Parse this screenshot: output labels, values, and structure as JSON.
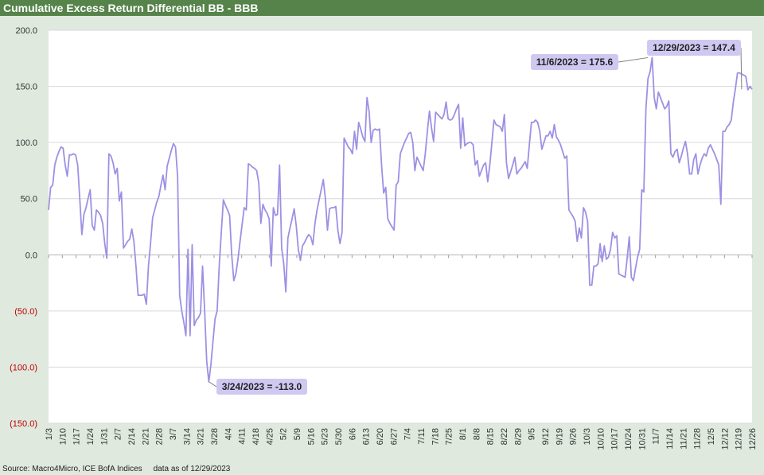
{
  "header": {
    "title": "Cumulative Excess Return Differential BB - BBB"
  },
  "footer": {
    "source": "Source: Macro4Micro, ICE BofA Indices",
    "as_of": "data as of 12/29/2023"
  },
  "colors": {
    "title_bar": "#55834a",
    "background": "#dfe9de",
    "series": "#9c91e4",
    "negative_label": "#c00000",
    "callout_fill": "#cfc9f2"
  },
  "chart_data": {
    "type": "line",
    "title": "Cumulative Excess Return Differential BB - BBB",
    "xlabel": "",
    "ylabel": "",
    "ylim": [
      -150,
      200
    ],
    "y_ticks": [
      {
        "value": 200,
        "label": "200.0"
      },
      {
        "value": 150,
        "label": "150.0"
      },
      {
        "value": 100,
        "label": "100.0"
      },
      {
        "value": 50,
        "label": "50.0"
      },
      {
        "value": 0,
        "label": "0.0"
      },
      {
        "value": -50,
        "label": "(50.0)"
      },
      {
        "value": -100,
        "label": "(100.0)"
      },
      {
        "value": -150,
        "label": "(150.0)"
      }
    ],
    "x_ticks": [
      "1/3",
      "1/10",
      "1/17",
      "1/24",
      "1/31",
      "2/7",
      "2/14",
      "2/21",
      "2/28",
      "3/7",
      "3/14",
      "3/21",
      "3/28",
      "4/4",
      "4/11",
      "4/18",
      "4/25",
      "5/2",
      "5/9",
      "5/16",
      "5/23",
      "5/30",
      "6/6",
      "6/13",
      "6/20",
      "6/27",
      "7/4",
      "7/11",
      "7/18",
      "7/25",
      "8/1",
      "8/8",
      "8/15",
      "8/22",
      "8/29",
      "9/5",
      "9/12",
      "9/19",
      "9/26",
      "10/3",
      "10/10",
      "10/17",
      "10/24",
      "10/31",
      "11/7",
      "11/14",
      "11/21",
      "11/28",
      "12/5",
      "12/12",
      "12/19",
      "12/26"
    ],
    "grid": true,
    "series": [
      {
        "values": [
          40,
          60,
          62,
          80,
          87,
          92,
          96,
          95,
          80,
          70,
          89,
          89,
          90,
          89,
          80,
          50,
          18,
          36,
          42,
          50,
          58,
          26,
          22,
          40,
          38,
          35,
          28,
          10,
          -3,
          90,
          88,
          82,
          72,
          77,
          48,
          56,
          6,
          9,
          12,
          14,
          23,
          12,
          -10,
          -36,
          -36,
          -36,
          -35,
          -44,
          -10,
          10,
          33,
          40,
          47,
          52,
          62,
          71,
          58,
          79,
          86,
          93,
          99,
          96,
          70,
          -36,
          -50,
          -60,
          -72,
          5,
          -72,
          9,
          -63,
          -58,
          -56,
          -52,
          -10,
          -50,
          -95,
          -113,
          -98,
          -77,
          -57,
          -50,
          -10,
          20,
          49,
          44,
          40,
          35,
          0,
          -23,
          -17,
          -4,
          12,
          27,
          42,
          40,
          81,
          80,
          78,
          77,
          75,
          64,
          28,
          45,
          40,
          37,
          32,
          -10,
          42,
          35,
          36,
          80,
          6,
          -8,
          -33,
          15,
          24,
          32,
          41,
          26,
          5,
          -5,
          8,
          11,
          15,
          18,
          16,
          9,
          28,
          40,
          49,
          58,
          67,
          50,
          22,
          41,
          42,
          42,
          43,
          22,
          10,
          20,
          104,
          100,
          96,
          94,
          90,
          110,
          94,
          118,
          112,
          105,
          101,
          140,
          128,
          100,
          111,
          112,
          111,
          112,
          80,
          55,
          60,
          32,
          28,
          25,
          22,
          62,
          65,
          90,
          95,
          100,
          104,
          108,
          109,
          100,
          75,
          87,
          83,
          79,
          75,
          90,
          110,
          128,
          113,
          101,
          127,
          125,
          123,
          121,
          125,
          136,
          121,
          120,
          121,
          125,
          130,
          134,
          95,
          122,
          97,
          99,
          100,
          100,
          98,
          80,
          84,
          70,
          75,
          80,
          82,
          65,
          80,
          100,
          120,
          116,
          115,
          114,
          110,
          125,
          82,
          68,
          74,
          80,
          87,
          72,
          75,
          77,
          80,
          83,
          77,
          98,
          118,
          118,
          120,
          118,
          110,
          94,
          100,
          106,
          106,
          110,
          104,
          116,
          105,
          102,
          98,
          92,
          86,
          88,
          40,
          37,
          34,
          30,
          12,
          24,
          15,
          42,
          38,
          30,
          -27,
          -27,
          -10,
          -10,
          -8,
          10,
          -6,
          8,
          -4,
          -2,
          5,
          20,
          15,
          17,
          -17,
          -18,
          -19,
          -20,
          -3,
          16,
          -20,
          -23,
          -12,
          -2,
          5,
          58,
          56,
          130,
          157,
          163,
          175.6,
          140,
          130,
          145,
          140,
          135,
          130,
          132,
          137,
          90,
          87,
          92,
          94,
          82,
          88,
          95,
          101,
          90,
          72,
          72,
          85,
          90,
          72,
          80,
          86,
          90,
          88,
          95,
          98,
          94,
          90,
          85,
          80,
          45,
          110,
          110,
          114,
          116,
          120,
          136,
          148,
          162,
          162,
          161,
          160,
          159,
          147,
          150,
          147.4
        ]
      }
    ],
    "annotations": [
      {
        "text": "12/29/2023 = 147.4",
        "x_index": 333,
        "value": 147.4
      },
      {
        "text": "11/6/2023 = 175.6",
        "x_index": 288,
        "value": 175.6
      },
      {
        "text": "3/24/2023 = -113.0",
        "x_index": 77,
        "value": -113.0
      }
    ]
  }
}
